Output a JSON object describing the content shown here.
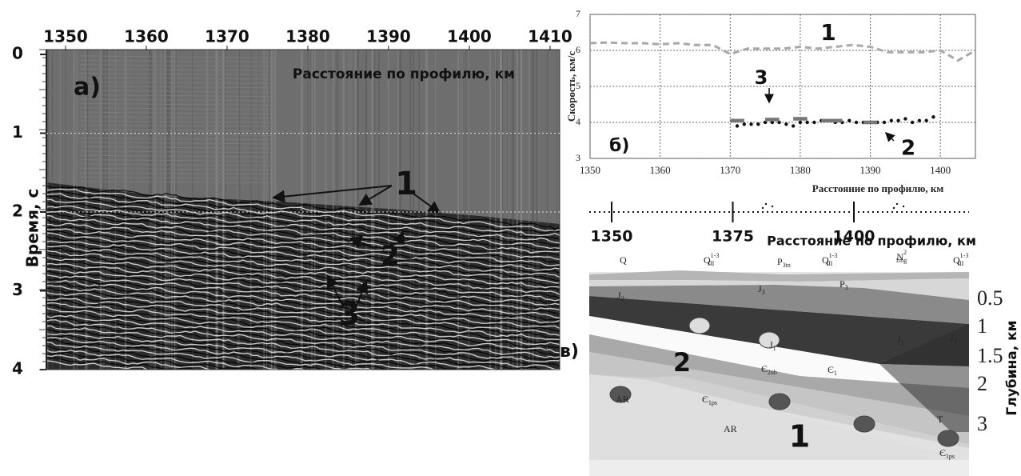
{
  "seismic_section": {
    "panel_label": "а)",
    "xlabel": "Расстояние по профилю, км",
    "ylabel": "Время, с",
    "xticks": [
      1350,
      1360,
      1370,
      1380,
      1390,
      1400,
      1410
    ],
    "yticks": [
      0,
      1,
      2,
      3,
      4
    ],
    "annotations": [
      "1",
      "2",
      "3"
    ]
  },
  "chart_data": {
    "type": "line",
    "panel_label": "б)",
    "xlabel": "Расстояние по профилю, км",
    "ylabel": "Скорость, км/с",
    "xlim": [
      1350,
      1405
    ],
    "ylim": [
      3,
      7
    ],
    "xticks": [
      1350,
      1360,
      1370,
      1380,
      1390,
      1400
    ],
    "yticks": [
      3,
      4,
      5,
      6,
      7
    ],
    "grid": true,
    "series": [
      {
        "color": "#a8a8a8",
        "style": "dashed",
        "x": [
          1350,
          1352.5,
          1355,
          1357.5,
          1360,
          1362.5,
          1365,
          1367.5,
          1370,
          1372.5,
          1375,
          1377.5,
          1380,
          1382.5,
          1385,
          1387.5,
          1390,
          1392.5,
          1395,
          1397.5,
          1400,
          1402.5,
          1405
        ],
        "values": [
          6.2,
          6.22,
          6.2,
          6.2,
          6.17,
          6.2,
          6.15,
          6.15,
          5.9,
          6.05,
          6.05,
          6.05,
          6.1,
          6.05,
          6.1,
          6.15,
          6.1,
          5.95,
          5.95,
          5.95,
          6.0,
          5.72,
          6.0
        ]
      },
      {
        "color": "#111111",
        "style": "dots",
        "x": [
          1371,
          1372,
          1373,
          1374,
          1375,
          1376,
          1377,
          1378,
          1379,
          1380,
          1381,
          1382,
          1383,
          1384,
          1385,
          1386,
          1387,
          1388,
          1389,
          1390,
          1391,
          1392,
          1393,
          1394,
          1395,
          1396,
          1397,
          1398,
          1399
        ],
        "values": [
          3.9,
          3.95,
          3.95,
          3.95,
          4.0,
          4.0,
          4.0,
          3.95,
          3.9,
          4.0,
          4.0,
          4.0,
          4.05,
          4.05,
          4.0,
          4.0,
          4.05,
          4.0,
          4.0,
          4.0,
          4.0,
          4.0,
          4.05,
          4.05,
          4.1,
          4.0,
          4.05,
          4.05,
          4.15
        ]
      },
      {
        "color": "#777777",
        "style": "segments",
        "x": [
          1370,
          1372,
          null,
          1375,
          1377,
          null,
          1379,
          1381,
          null,
          1383,
          1386,
          null,
          1389,
          1391
        ],
        "values": [
          4.05,
          4.05,
          null,
          4.08,
          4.08,
          null,
          4.1,
          4.1,
          null,
          4.05,
          4.05,
          null,
          4.0,
          4.0
        ]
      }
    ],
    "annotations": [
      "1",
      "3",
      "2"
    ]
  },
  "geologic_section": {
    "panel_label": "в)",
    "xlabel": "Расстояние по профилю, км",
    "xticks": [
      1350,
      1375,
      1400
    ],
    "depth_label": "Глубина, км",
    "depth_ticks": [
      0.5,
      1,
      1.5,
      2,
      3
    ],
    "formations": [
      {
        "base": "Q"
      },
      {
        "base": "Q",
        "sub": "III",
        "sup": "1-3"
      },
      {
        "base": "P",
        "sub": "3tn"
      },
      {
        "base": "Q",
        "sub": "III",
        "sup": "1-3"
      },
      {
        "base": "N",
        "sub": "1mg",
        "sup": "2"
      },
      {
        "base": "Q",
        "sub": "III",
        "sup": "1-3"
      },
      {
        "base": "J",
        "sub": "3"
      },
      {
        "base": "P",
        "sub": "3"
      },
      {
        "base": "J",
        "sub": "2"
      },
      {
        "base": "J",
        "sub": "1"
      },
      {
        "base": "Є",
        "sub": "2ub"
      },
      {
        "base": "J",
        "sub": "2"
      },
      {
        "base": "J",
        "sub": "3"
      },
      {
        "base": "Є",
        "sub": "1"
      },
      {
        "base": "AR"
      },
      {
        "base": "Є",
        "sub": "1ps"
      },
      {
        "base": "AR"
      },
      {
        "base": "T"
      },
      {
        "base": "Є",
        "sub": "1ps"
      }
    ],
    "annotations": [
      "2",
      "1"
    ]
  }
}
